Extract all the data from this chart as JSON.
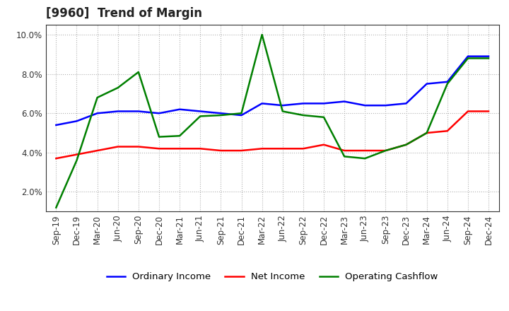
{
  "title": "[9960]  Trend of Margin",
  "x_labels": [
    "Sep-19",
    "Dec-19",
    "Mar-20",
    "Jun-20",
    "Sep-20",
    "Dec-20",
    "Mar-21",
    "Jun-21",
    "Sep-21",
    "Dec-21",
    "Mar-22",
    "Jun-22",
    "Sep-22",
    "Dec-22",
    "Mar-23",
    "Jun-23",
    "Sep-23",
    "Dec-23",
    "Mar-24",
    "Jun-24",
    "Sep-24",
    "Dec-24"
  ],
  "ordinary_income": [
    5.4,
    5.6,
    6.0,
    6.1,
    6.1,
    6.0,
    6.2,
    6.1,
    6.0,
    5.9,
    6.5,
    6.4,
    6.5,
    6.5,
    6.6,
    6.4,
    6.4,
    6.5,
    7.5,
    7.6,
    8.9,
    8.9
  ],
  "net_income": [
    3.7,
    3.9,
    4.1,
    4.3,
    4.3,
    4.2,
    4.2,
    4.2,
    4.1,
    4.1,
    4.2,
    4.2,
    4.2,
    4.4,
    4.1,
    4.1,
    4.1,
    4.4,
    5.0,
    5.1,
    6.1,
    6.1
  ],
  "operating_cashflow": [
    1.2,
    3.6,
    6.8,
    7.3,
    8.1,
    4.8,
    4.85,
    5.85,
    5.9,
    6.0,
    10.0,
    6.1,
    5.9,
    5.8,
    3.8,
    3.7,
    4.1,
    4.4,
    5.0,
    7.5,
    8.8,
    8.8
  ],
  "ylim": [
    1.0,
    10.5
  ],
  "yticks": [
    2.0,
    4.0,
    6.0,
    8.0,
    10.0
  ],
  "line_colors": {
    "ordinary_income": "#0000ff",
    "net_income": "#ff0000",
    "operating_cashflow": "#008000"
  },
  "legend_labels": [
    "Ordinary Income",
    "Net Income",
    "Operating Cashflow"
  ],
  "background_color": "#ffffff",
  "grid_color": "#b0b0b0",
  "title_fontsize": 12,
  "axis_fontsize": 8.5,
  "legend_fontsize": 9.5
}
